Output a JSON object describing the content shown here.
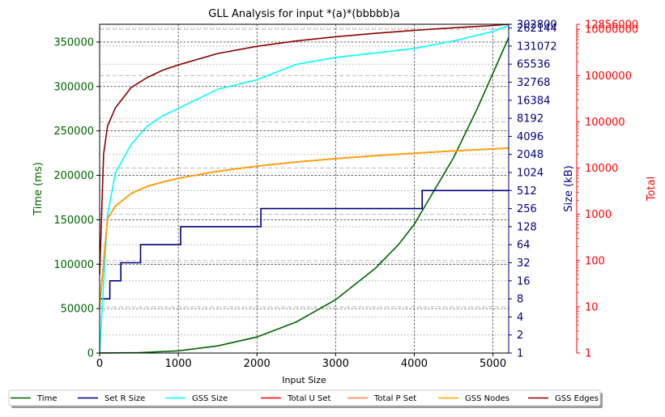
{
  "chart_data": {
    "type": "line",
    "title": "GLL Analysis for input *(a)*(bbbbb)a",
    "xlabel": "Input Size",
    "xlim": [
      0,
      5200
    ],
    "x_ticks": [
      "0",
      "1000",
      "2000",
      "3000",
      "4000",
      "5000"
    ],
    "axes": {
      "time": {
        "label": "Time (ms)",
        "color": "#006400",
        "scale": "linear",
        "lim": [
          0,
          370000
        ],
        "ticks": [
          "0",
          "50000",
          "100000",
          "150000",
          "200000",
          "250000",
          "300000",
          "350000"
        ]
      },
      "size": {
        "label": "Size (kB)",
        "color": "#000080",
        "scale": "log2",
        "lim": [
          1,
          302800
        ],
        "ticks": [
          "1",
          "2",
          "4",
          "8",
          "16",
          "32",
          "64",
          "128",
          "256",
          "512",
          "1024",
          "2048",
          "4096",
          "8192",
          "16384",
          "32768",
          "65536",
          "131072",
          "262144",
          "302800"
        ]
      },
      "total": {
        "label": "Total",
        "color": "#ff0000",
        "scale": "log10",
        "lim": [
          1,
          12856000
        ],
        "ticks": [
          "1",
          "10",
          "100",
          "1000",
          "10000",
          "100000",
          "1000000",
          "10000000",
          "12856000"
        ]
      }
    },
    "series": [
      {
        "name": "Time",
        "axis": "time",
        "color": "#006400",
        "x": [
          0,
          500,
          1000,
          1500,
          2000,
          2500,
          3000,
          3500,
          3800,
          4000,
          4200,
          4500,
          4800,
          5000,
          5200
        ],
        "y": [
          0,
          500,
          2500,
          8000,
          18000,
          35000,
          60000,
          95000,
          122000,
          145000,
          175000,
          220000,
          275000,
          315000,
          355000
        ]
      },
      {
        "name": "Set R Size",
        "axis": "size",
        "color": "#000080",
        "step": true,
        "x": [
          0,
          20,
          130,
          270,
          520,
          1030,
          2050,
          4100,
          5200
        ],
        "y": [
          8,
          8,
          16,
          32,
          64,
          128,
          256,
          512,
          512
        ]
      },
      {
        "name": "GSS Size",
        "axis": "size",
        "color": "#00ffff",
        "x": [
          0,
          100,
          200,
          400,
          600,
          800,
          1000,
          1500,
          2000,
          2500,
          3000,
          3500,
          4000,
          4500,
          5000,
          5200
        ],
        "y": [
          1,
          200,
          1000,
          3000,
          6000,
          9000,
          12000,
          25000,
          36000,
          65000,
          85000,
          100000,
          120000,
          160000,
          230000,
          290000
        ]
      },
      {
        "name": "Total U Set",
        "axis": "total",
        "color": "#ff0000",
        "x": [
          0,
          100,
          200,
          400,
          600,
          800,
          1000,
          1500,
          2000,
          2500,
          3000,
          3500,
          4000,
          4500,
          5000,
          5200
        ],
        "y": [
          10,
          800,
          1500,
          2800,
          4000,
          5000,
          6000,
          8500,
          11000,
          13500,
          16000,
          18500,
          21000,
          23500,
          26000,
          27000
        ]
      },
      {
        "name": "Total P Set",
        "axis": "total",
        "color": "#ff7f50",
        "x": [
          0,
          100,
          200,
          400,
          600,
          800,
          1000,
          1500,
          2000,
          2500,
          3000,
          3500,
          4000,
          4500,
          5000,
          5200
        ],
        "y": [
          10,
          800,
          1500,
          2800,
          4000,
          5000,
          6000,
          8500,
          11000,
          13500,
          16000,
          18500,
          21000,
          23500,
          26000,
          27000
        ]
      },
      {
        "name": "GSS Nodes",
        "axis": "total",
        "color": "#ffa500",
        "x": [
          0,
          100,
          200,
          400,
          600,
          800,
          1000,
          1500,
          2000,
          2500,
          3000,
          3500,
          4000,
          4500,
          5000,
          5200
        ],
        "y": [
          10,
          800,
          1500,
          2800,
          4000,
          5000,
          6000,
          8500,
          11000,
          13500,
          16000,
          18500,
          21000,
          23500,
          26000,
          27000
        ]
      },
      {
        "name": "GSS Edges",
        "axis": "total",
        "color": "#8b0000",
        "x": [
          0,
          50,
          100,
          200,
          400,
          600,
          800,
          1000,
          1500,
          2000,
          2500,
          3000,
          3500,
          4000,
          4500,
          5000,
          5200
        ],
        "y": [
          50,
          20000,
          80000,
          200000,
          550000,
          900000,
          1300000,
          1700000,
          3000000,
          4300000,
          5600000,
          6900000,
          8200000,
          9500000,
          10800000,
          12100000,
          12856000
        ]
      }
    ],
    "grid": true,
    "legend": "bottom"
  }
}
